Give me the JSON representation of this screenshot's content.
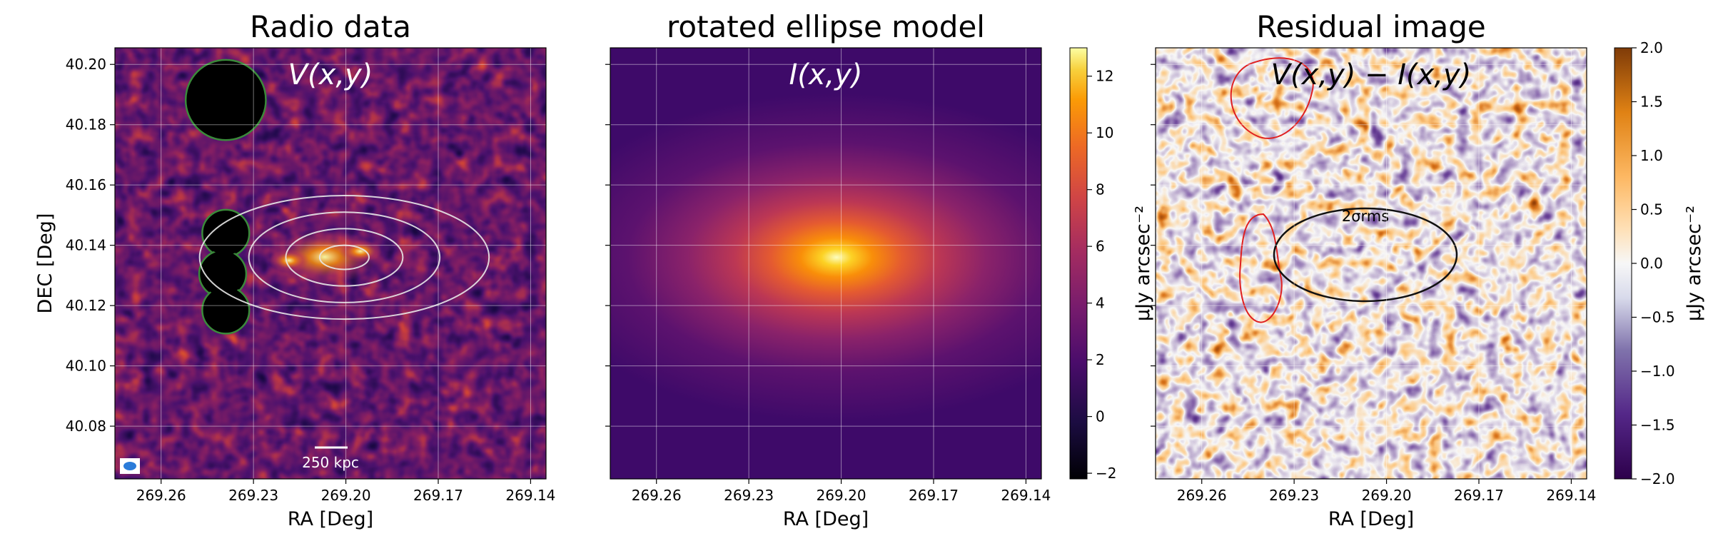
{
  "colors": {
    "inferno_low": "#000004",
    "inferno_mid": "#5a0f6e",
    "inferno_high": "#fcffa4",
    "puor_low": "#2d004b",
    "puor_mid": "#f7f7f7",
    "puor_high": "#7f3b08",
    "mask_edge": "#3a8a3a",
    "contour": "#e8e8e8",
    "red_contour": "#e02020",
    "black_contour": "#111111",
    "beam": "#2b7bd9"
  },
  "chart_data": [
    {
      "type": "heatmap",
      "title": "Radio data",
      "annotation": "V(x,y)",
      "xlabel": "RA [Deg]",
      "ylabel": "DEC [Deg]",
      "xlim": [
        269.275,
        269.135
      ],
      "ylim": [
        40.0625,
        40.2055
      ],
      "xticks": [
        269.26,
        269.23,
        269.2,
        269.17,
        269.14
      ],
      "xtick_labels": [
        "269.26",
        "269.23",
        "269.20",
        "269.17",
        "269.14"
      ],
      "yticks": [
        40.08,
        40.1,
        40.12,
        40.14,
        40.16,
        40.18,
        40.2
      ],
      "ytick_labels": [
        "40.08",
        "40.10",
        "40.12",
        "40.14",
        "40.16",
        "40.18",
        "40.20"
      ],
      "grid": true,
      "colormap": "inferno",
      "scalebar_label": "250 kpc",
      "masked_regions": [
        {
          "ra": 269.239,
          "dec": 40.1882,
          "r_deg": 0.0133
        },
        {
          "ra": 269.239,
          "dec": 40.144,
          "r_deg": 0.0078
        },
        {
          "ra": 269.24,
          "dec": 40.1305,
          "r_deg": 0.0078
        },
        {
          "ra": 269.239,
          "dec": 40.1185,
          "r_deg": 0.0078
        }
      ],
      "contour_ellipses": [
        {
          "ra": 269.2005,
          "dec": 40.136,
          "a_deg": 0.008,
          "b_deg": 0.004
        },
        {
          "ra": 269.2005,
          "dec": 40.136,
          "a_deg": 0.019,
          "b_deg": 0.0095
        },
        {
          "ra": 269.2005,
          "dec": 40.136,
          "a_deg": 0.031,
          "b_deg": 0.015
        },
        {
          "ra": 269.2005,
          "dec": 40.136,
          "a_deg": 0.047,
          "b_deg": 0.0205
        }
      ]
    },
    {
      "type": "heatmap",
      "title": "rotated ellipse model",
      "annotation": "I(x,y)",
      "xlabel": "RA [Deg]",
      "xlim": [
        269.275,
        269.135
      ],
      "ylim": [
        40.0625,
        40.2055
      ],
      "xticks": [
        269.26,
        269.23,
        269.2,
        269.17,
        269.14
      ],
      "xtick_labels": [
        "269.26",
        "269.23",
        "269.20",
        "269.17",
        "269.14"
      ],
      "grid": true,
      "colormap": "inferno",
      "model": {
        "ra": 269.2015,
        "dec": 40.136,
        "peak": 12.5
      },
      "colorbar": {
        "label": "μJy arcsec⁻²",
        "vmin": -2.2,
        "vmax": 13,
        "ticks": [
          -2,
          0,
          2,
          4,
          6,
          8,
          10,
          12
        ],
        "tick_labels": [
          "−2",
          "0",
          "2",
          "4",
          "6",
          "8",
          "10",
          "12"
        ]
      }
    },
    {
      "type": "heatmap",
      "title": "Residual image",
      "annotation": "V(x,y) − I(x,y)",
      "xlabel": "RA [Deg]",
      "xlim": [
        269.275,
        269.135
      ],
      "ylim": [
        40.0625,
        40.2055
      ],
      "xticks": [
        269.26,
        269.23,
        269.2,
        269.17,
        269.14
      ],
      "xtick_labels": [
        "269.26",
        "269.23",
        "269.20",
        "269.17",
        "269.14"
      ],
      "grid": true,
      "colormap": "PuOr_r",
      "contour_label": "2σrms",
      "colorbar": {
        "label": "μJy arcsec⁻²",
        "vmin": -2.0,
        "vmax": 2.0,
        "ticks": [
          -2.0,
          -1.5,
          -1.0,
          -0.5,
          0.0,
          0.5,
          1.0,
          1.5,
          2.0
        ],
        "tick_labels": [
          "−2.0",
          "−1.5",
          "−1.0",
          "−0.5",
          "0.0",
          "0.5",
          "1.0",
          "1.5",
          "2.0"
        ]
      }
    }
  ]
}
